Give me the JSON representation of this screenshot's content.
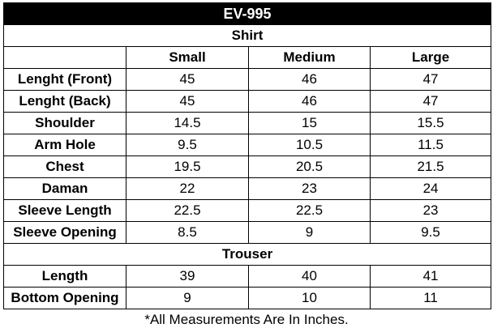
{
  "title": "EV-995",
  "shirt": {
    "heading": "Shirt",
    "sizes": [
      "Small",
      "Medium",
      "Large"
    ],
    "rows": [
      {
        "label": "Lenght  (Front)",
        "values": [
          "45",
          "46",
          "47"
        ]
      },
      {
        "label": "Lenght  (Back)",
        "values": [
          "45",
          "46",
          "47"
        ]
      },
      {
        "label": "Shoulder",
        "values": [
          "14.5",
          "15",
          "15.5"
        ]
      },
      {
        "label": "Arm Hole",
        "values": [
          "9.5",
          "10.5",
          "11.5"
        ]
      },
      {
        "label": "Chest",
        "values": [
          "19.5",
          "20.5",
          "21.5"
        ]
      },
      {
        "label": "Daman",
        "values": [
          "22",
          "23",
          "24"
        ]
      },
      {
        "label": "Sleeve Length",
        "values": [
          "22.5",
          "22.5",
          "23"
        ]
      },
      {
        "label": "Sleeve Opening",
        "values": [
          "8.5",
          "9",
          "9.5"
        ]
      }
    ]
  },
  "trouser": {
    "heading": "Trouser",
    "rows": [
      {
        "label": "Length",
        "values": [
          "39",
          "40",
          "41"
        ]
      },
      {
        "label": "Bottom Opening",
        "values": [
          "9",
          "10",
          "11"
        ]
      }
    ]
  },
  "note": "*All Measurements Are In Inches."
}
